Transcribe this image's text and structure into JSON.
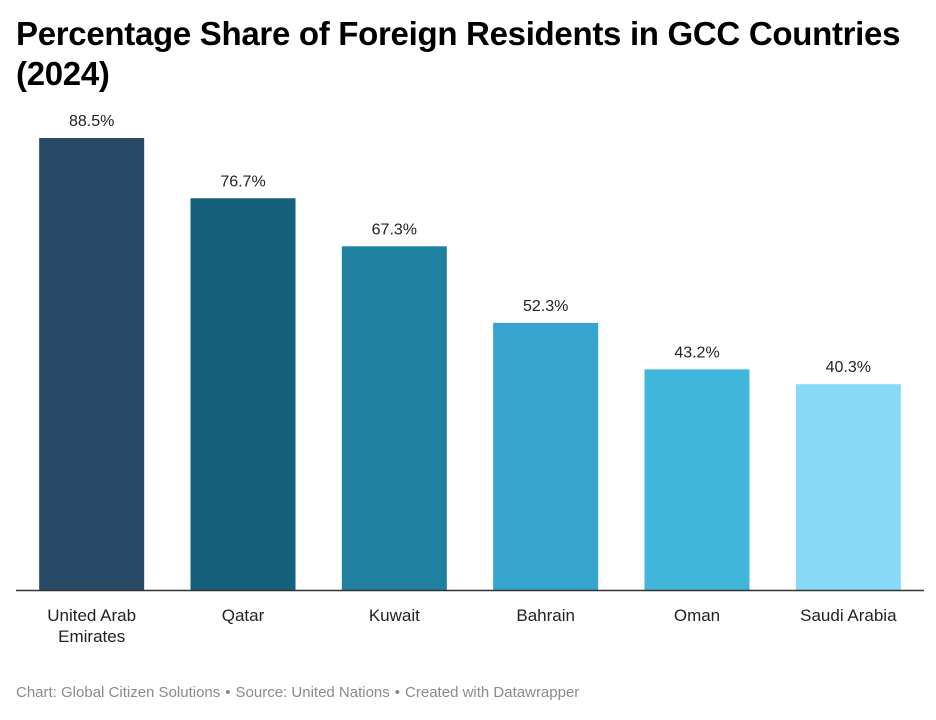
{
  "chart_data": {
    "type": "bar",
    "title": "Percentage Share of Foreign Residents in GCC Countries (2024)",
    "categories": [
      "United Arab Emirates",
      "Qatar",
      "Kuwait",
      "Bahrain",
      "Oman",
      "Saudi Arabia"
    ],
    "category_lines": [
      [
        "United Arab",
        "Emirates"
      ],
      [
        "Qatar"
      ],
      [
        "Kuwait"
      ],
      [
        "Bahrain"
      ],
      [
        "Oman"
      ],
      [
        "Saudi Arabia"
      ]
    ],
    "values": [
      88.5,
      76.7,
      67.3,
      52.3,
      43.2,
      40.3
    ],
    "value_labels": [
      "88.5%",
      "76.7%",
      "67.3%",
      "52.3%",
      "43.2%",
      "40.3%"
    ],
    "colors": [
      "#284a66",
      "#145f7a",
      "#1f819f",
      "#37a3cf",
      "#40b7da",
      "#89d9f8"
    ],
    "ylim": [
      0,
      88.5
    ],
    "xlabel": "",
    "ylabel": "",
    "grid": false,
    "legend": "none"
  },
  "footer": {
    "chart_credit": "Chart: Global Citizen Solutions",
    "source": "Source: United Nations",
    "tool": "Created with Datawrapper",
    "separator": "•"
  }
}
